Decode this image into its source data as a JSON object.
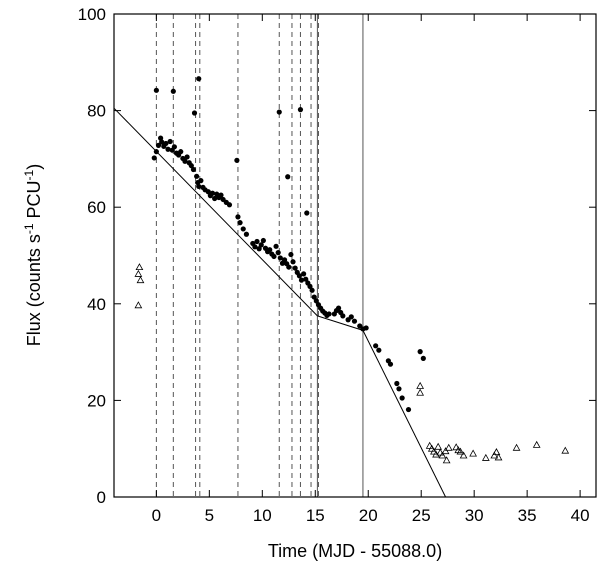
{
  "chart_data": {
    "type": "scatter",
    "xlabel": "Time (MJD - 55088.0)",
    "ylabel": "Flux (counts s-1 PCU-1)",
    "ylabel_parts": [
      "Flux (counts s",
      "-1",
      " PCU",
      "-1",
      ")"
    ],
    "xlim": [
      -4,
      41.5
    ],
    "ylim": [
      0,
      100
    ],
    "xticks": [
      0,
      5,
      10,
      15,
      20,
      25,
      30,
      35,
      40
    ],
    "yticks": [
      0,
      20,
      40,
      60,
      80,
      100
    ],
    "dashed_vlines": [
      0,
      1.6,
      3.7,
      4.1,
      7.7,
      11.6,
      12.8,
      13.6,
      14.6,
      15.3
    ],
    "solid_vlines": [
      15.2,
      19.5
    ],
    "fit_lines": [
      {
        "x": [
          -4,
          15.2
        ],
        "y": [
          80.5,
          37.5
        ]
      },
      {
        "x": [
          15.2,
          19.5
        ],
        "y": [
          37.5,
          34.5
        ]
      },
      {
        "x": [
          19.5,
          27.3
        ],
        "y": [
          34.5,
          0
        ]
      }
    ],
    "series": [
      {
        "marker": "dot",
        "color": "#000000",
        "points": [
          [
            0,
            84.2
          ],
          [
            1.6,
            84.0
          ],
          [
            3.6,
            79.5
          ],
          [
            4.0,
            86.6
          ],
          [
            7.6,
            69.7
          ],
          [
            11.6,
            79.7
          ],
          [
            12.4,
            66.3
          ],
          [
            13.6,
            80.2
          ],
          [
            14.2,
            58.8
          ],
          [
            -0.2,
            70.2
          ],
          [
            0.0,
            71.5
          ],
          [
            0.2,
            72.8
          ],
          [
            0.4,
            74.3
          ],
          [
            0.5,
            73.5
          ],
          [
            0.7,
            72.6
          ],
          [
            0.9,
            73.2
          ],
          [
            1.1,
            72.0
          ],
          [
            1.3,
            73.6
          ],
          [
            1.5,
            71.8
          ],
          [
            1.7,
            72.5
          ],
          [
            1.9,
            71.2
          ],
          [
            2.1,
            70.8
          ],
          [
            2.3,
            71.5
          ],
          [
            2.5,
            70.1
          ],
          [
            2.7,
            69.5
          ],
          [
            2.9,
            70.4
          ],
          [
            3.1,
            69.2
          ],
          [
            3.3,
            68.6
          ],
          [
            3.5,
            67.8
          ],
          [
            3.8,
            66.4
          ],
          [
            3.9,
            65.1
          ],
          [
            4.0,
            64.3
          ],
          [
            4.2,
            65.5
          ],
          [
            4.4,
            64.1
          ],
          [
            4.6,
            63.6
          ],
          [
            4.9,
            63.2
          ],
          [
            5.1,
            62.4
          ],
          [
            5.3,
            62.9
          ],
          [
            5.5,
            61.8
          ],
          [
            5.7,
            62.7
          ],
          [
            5.9,
            62.0
          ],
          [
            6.1,
            62.5
          ],
          [
            6.3,
            61.6
          ],
          [
            6.6,
            61.0
          ],
          [
            6.9,
            60.5
          ],
          [
            7.7,
            58.0
          ],
          [
            7.9,
            56.8
          ],
          [
            8.2,
            55.5
          ],
          [
            8.5,
            54.4
          ],
          [
            9.1,
            52.5
          ],
          [
            9.3,
            51.8
          ],
          [
            9.5,
            52.9
          ],
          [
            9.7,
            51.4
          ],
          [
            9.9,
            52.2
          ],
          [
            10.1,
            53.1
          ],
          [
            10.3,
            51.5
          ],
          [
            10.5,
            50.8
          ],
          [
            10.7,
            51.2
          ],
          [
            10.9,
            50.3
          ],
          [
            11.1,
            49.8
          ],
          [
            11.3,
            51.9
          ],
          [
            11.5,
            50.6
          ],
          [
            11.7,
            49.5
          ],
          [
            11.9,
            48.4
          ],
          [
            12.1,
            49.1
          ],
          [
            12.3,
            48.3
          ],
          [
            12.5,
            47.6
          ],
          [
            12.7,
            50.2
          ],
          [
            12.9,
            48.7
          ],
          [
            13.1,
            47.4
          ],
          [
            13.3,
            46.5
          ],
          [
            13.5,
            45.8
          ],
          [
            13.7,
            44.9
          ],
          [
            13.9,
            46.2
          ],
          [
            14.1,
            45.1
          ],
          [
            14.3,
            44.3
          ],
          [
            14.5,
            43.6
          ],
          [
            14.7,
            42.8
          ],
          [
            14.9,
            41.4
          ],
          [
            15.1,
            40.6
          ],
          [
            15.3,
            39.8
          ],
          [
            15.5,
            39.1
          ],
          [
            15.7,
            38.5
          ],
          [
            15.9,
            38.1
          ],
          [
            16.1,
            37.6
          ],
          [
            16.3,
            37.9
          ],
          [
            16.8,
            37.9
          ],
          [
            17.0,
            38.6
          ],
          [
            17.2,
            39.1
          ],
          [
            17.4,
            38.2
          ],
          [
            17.6,
            37.5
          ],
          [
            18.1,
            36.7
          ],
          [
            18.4,
            37.3
          ],
          [
            18.7,
            36.4
          ],
          [
            19.2,
            35.4
          ],
          [
            19.5,
            34.8
          ],
          [
            19.8,
            35.0
          ],
          [
            20.7,
            31.3
          ],
          [
            21.0,
            30.4
          ],
          [
            21.9,
            28.2
          ],
          [
            22.1,
            27.5
          ],
          [
            22.7,
            23.5
          ],
          [
            22.9,
            22.4
          ],
          [
            23.2,
            20.5
          ],
          [
            23.8,
            18.1
          ],
          [
            24.9,
            30.1
          ],
          [
            25.2,
            28.7
          ]
        ]
      },
      {
        "marker": "triangle",
        "color": "#000000",
        "points": [
          [
            -1.6,
            47.6
          ],
          [
            -1.7,
            46.2
          ],
          [
            -1.5,
            44.9
          ],
          [
            -1.7,
            39.7
          ],
          [
            24.9,
            23.0
          ],
          [
            24.9,
            21.6
          ],
          [
            25.8,
            10.6
          ],
          [
            26.0,
            10.0
          ],
          [
            26.2,
            9.4
          ],
          [
            26.4,
            8.8
          ],
          [
            26.6,
            10.4
          ],
          [
            26.8,
            9.2
          ],
          [
            27.0,
            8.6
          ],
          [
            27.3,
            9.5
          ],
          [
            27.6,
            10.2
          ],
          [
            27.4,
            7.6
          ],
          [
            28.3,
            10.3
          ],
          [
            28.5,
            9.7
          ],
          [
            28.7,
            9.4
          ],
          [
            29.0,
            8.6
          ],
          [
            29.9,
            9.0
          ],
          [
            31.1,
            8.1
          ],
          [
            31.9,
            8.6
          ],
          [
            32.1,
            9.3
          ],
          [
            32.3,
            8.2
          ],
          [
            34.0,
            10.2
          ],
          [
            35.9,
            10.8
          ],
          [
            38.6,
            9.6
          ]
        ]
      }
    ]
  }
}
